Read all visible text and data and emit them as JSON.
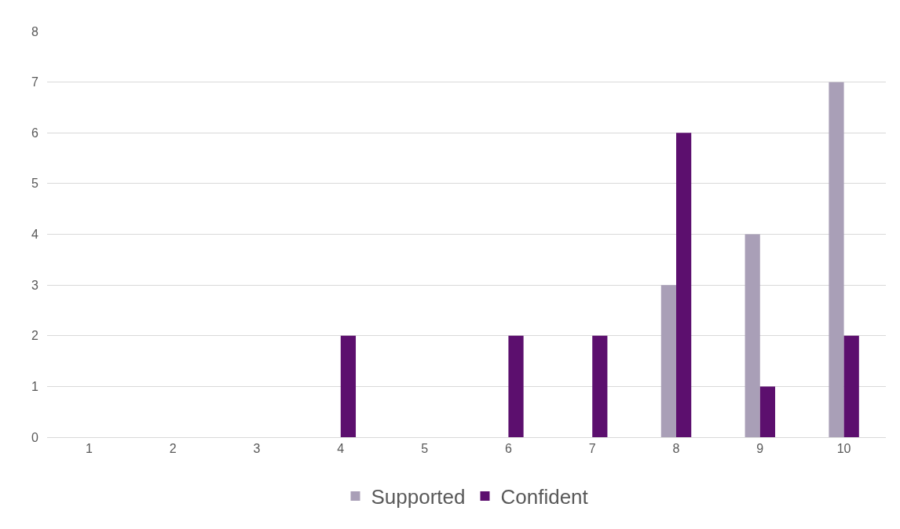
{
  "chart_data": {
    "type": "bar",
    "categories": [
      "1",
      "2",
      "3",
      "4",
      "5",
      "6",
      "7",
      "8",
      "9",
      "10"
    ],
    "series": [
      {
        "name": "Supported",
        "color": "#a99fb7",
        "values": [
          0,
          0,
          0,
          0,
          0,
          0,
          0,
          3,
          4,
          7
        ]
      },
      {
        "name": "Confident",
        "color": "#5c0f6e",
        "values": [
          0,
          0,
          0,
          2,
          0,
          2,
          2,
          6,
          1,
          2
        ]
      }
    ],
    "ylim": [
      0,
      8
    ],
    "yticks": [
      0,
      1,
      2,
      3,
      4,
      5,
      6,
      7,
      8
    ],
    "grid": "y",
    "legend": "bottom"
  }
}
